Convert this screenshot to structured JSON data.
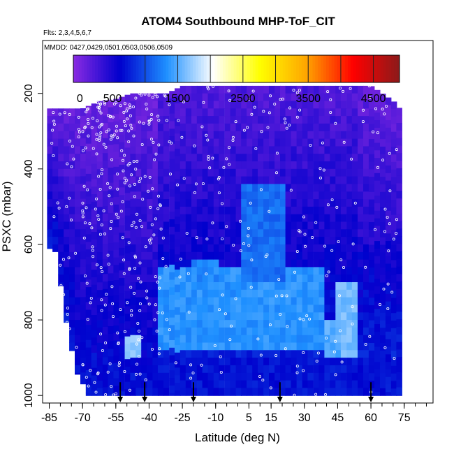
{
  "chart_data": {
    "type": "heatmap",
    "title": "ATOM4 Southbound MHP-ToF_CIT",
    "flights_label": "Flts: 2,3,4,5,6,7",
    "dates_label": "MMDD: 0427,0429,0501,0503,0506,0509",
    "xlabel": "Latitude (deg N)",
    "ylabel": "PSXC (mbar)",
    "xlim": [
      -88,
      88
    ],
    "ylim": [
      1020,
      60
    ],
    "x_ticks": [
      -85,
      -70,
      -55,
      -40,
      -25,
      -10,
      5,
      15,
      30,
      45,
      60,
      75
    ],
    "y_ticks": [
      200,
      400,
      600,
      800,
      1000
    ],
    "colorbar": {
      "min": -100,
      "max": 4900,
      "tick_values": [
        0,
        500,
        1500,
        2500,
        3500,
        4500
      ],
      "tick_labels": [
        "0",
        "500",
        "1500",
        "2500",
        "3500",
        "4500"
      ],
      "divisions": [
        1000,
        1500,
        2000,
        2500,
        3000,
        3500,
        4000,
        4500
      ],
      "colors": [
        "#8a2be2",
        "#0000cd",
        "#1e90ff",
        "#ffffff",
        "#ffff00",
        "#ffa500",
        "#ff0000",
        "#8b1a1a"
      ]
    },
    "profile_markers_lat": [
      -53,
      -42,
      -20,
      19,
      60
    ],
    "domain_top": {
      "lat": [
        -85,
        -78,
        -70,
        -62,
        -55,
        -48,
        -40,
        -32,
        -25,
        -10,
        5,
        20,
        35,
        50,
        60,
        65,
        70,
        73
      ],
      "p": [
        240,
        240,
        240,
        220,
        215,
        200,
        200,
        200,
        180,
        180,
        180,
        180,
        180,
        180,
        180,
        200,
        220,
        240
      ]
    },
    "domain_bottom": {
      "lat": [
        -85,
        -82,
        -80,
        -78,
        -76,
        -74,
        -72,
        -70,
        -68,
        74
      ],
      "p": [
        610,
        620,
        700,
        780,
        850,
        900,
        950,
        965,
        1000,
        1000
      ]
    },
    "plumes": [
      {
        "lat": [
          -35,
          38
        ],
        "p": [
          660,
          880
        ],
        "value": 1350
      },
      {
        "lat": [
          -22,
          -8
        ],
        "p": [
          640,
          700
        ],
        "value": 1300
      },
      {
        "lat": [
          2,
          22
        ],
        "p": [
          450,
          700
        ],
        "value": 1150
      },
      {
        "lat": [
          44,
          54
        ],
        "p": [
          710,
          900
        ],
        "value": 1600
      },
      {
        "lat": [
          -52,
          -44
        ],
        "p": [
          840,
          900
        ],
        "value": 1700
      },
      {
        "lat": [
          40,
          46
        ],
        "p": [
          800,
          900
        ],
        "value": 1500
      }
    ]
  }
}
